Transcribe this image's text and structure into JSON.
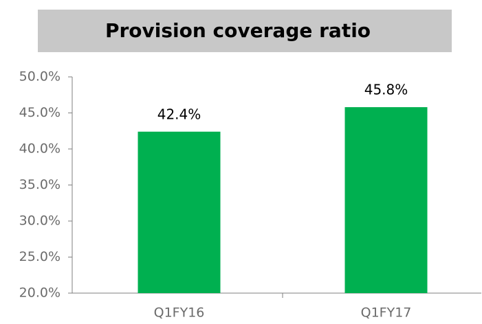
{
  "chart_data": {
    "type": "bar",
    "title": "Provision coverage ratio",
    "categories": [
      "Q1FY16",
      "Q1FY17"
    ],
    "values": [
      42.4,
      45.8
    ],
    "value_labels": [
      "42.4%",
      "45.8%"
    ],
    "color": "#00b050",
    "ylim": [
      20,
      50
    ],
    "yticks": [
      {
        "value": 20,
        "label": "20.0%"
      },
      {
        "value": 25,
        "label": "25.0%"
      },
      {
        "value": 30,
        "label": "30.0%"
      },
      {
        "value": 35,
        "label": "35.0%"
      },
      {
        "value": 40,
        "label": "40.0%"
      },
      {
        "value": 45,
        "label": "45.0%"
      },
      {
        "value": 50,
        "label": "50.0%"
      }
    ],
    "grid": false
  }
}
